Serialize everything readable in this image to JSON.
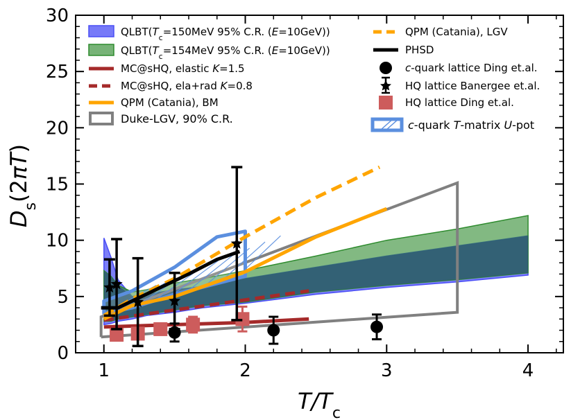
{
  "chart_data": {
    "type": "line",
    "xlabel": "T/T_c",
    "ylabel": "D_s(2πT)",
    "xlim": [
      0.8,
      4.25
    ],
    "ylim": [
      0,
      30
    ],
    "xticks": [
      1,
      2,
      3,
      4
    ],
    "yticks": [
      0,
      5,
      10,
      15,
      20,
      25,
      30
    ],
    "grid": false,
    "legend_left_texts": [
      "QLBT(T_c=150MeV 95% C.R. (E=10GeV))",
      "QLBT(T_c=154MeV 95% C.R. (E=10GeV))",
      "MC@sHQ, elastic K=1.5",
      "MC@sHQ, ela+rad K=0.8",
      "QPM (Catania), BM",
      "Duke-LGV, 90% C.R."
    ],
    "legend_right_texts": [
      "QPM (Catania), LGV",
      "PHSD",
      "c-quark lattice Ding et.al.",
      "HQ lattice Banergee et.al.",
      "HQ lattice Ding et.al.",
      "c-quark T-matrix U-pot"
    ],
    "colors": {
      "qlbt150": "#4a4ef5",
      "qlbt154": "#2e8b2e",
      "overlap": "#2f5a73",
      "mcshq": "#a52a2a",
      "qpm": "#ffa500",
      "duke": "#808080",
      "phsd": "#000000",
      "tmatrix": "#5b8fdf",
      "ding_hq": "#cd5c5c"
    },
    "bands": [
      {
        "name": "QLBT(Tc=150MeV 95% C.R. (E=10GeV))",
        "x": [
          1.0,
          1.05,
          1.1,
          1.2,
          1.3,
          1.5,
          1.7,
          2.0,
          2.5,
          3.0,
          3.5,
          4.0
        ],
        "lower": [
          2.5,
          2.6,
          2.8,
          3.0,
          3.3,
          3.6,
          4.0,
          4.4,
          5.2,
          5.8,
          6.3,
          6.9
        ],
        "upper": [
          10.2,
          8.5,
          6.5,
          5.0,
          5.2,
          5.6,
          5.9,
          6.6,
          7.6,
          8.6,
          9.5,
          10.4
        ]
      },
      {
        "name": "QLBT(Tc=154MeV 95% C.R. (E=10GeV))",
        "x": [
          1.0,
          1.05,
          1.1,
          1.2,
          1.3,
          1.5,
          1.7,
          2.0,
          2.5,
          3.0,
          3.5,
          4.0
        ],
        "lower": [
          2.8,
          2.8,
          3.0,
          3.2,
          3.4,
          3.8,
          4.2,
          4.5,
          5.4,
          6.0,
          6.5,
          7.1
        ],
        "upper": [
          7.3,
          6.8,
          6.0,
          5.4,
          5.6,
          6.2,
          6.6,
          7.3,
          8.6,
          10.0,
          11.0,
          12.2
        ]
      }
    ],
    "series": [
      {
        "name": "MC@sHQ, elastic K=1.5",
        "x": [
          1.0,
          1.5,
          2.0,
          2.45
        ],
        "y": [
          2.3,
          2.5,
          2.7,
          3.0
        ]
      },
      {
        "name": "MC@sHQ, ela+rad K=0.8",
        "x": [
          1.0,
          1.5,
          2.0,
          2.45
        ],
        "y": [
          2.9,
          3.8,
          4.7,
          5.5
        ]
      },
      {
        "name": "QPM (Catania), BM",
        "x": [
          1.0,
          1.2,
          1.5,
          2.0,
          2.5,
          3.0
        ],
        "y": [
          3.0,
          4.2,
          5.0,
          7.2,
          10.3,
          12.8
        ]
      },
      {
        "name": "QPM (Catania), LGV",
        "x": [
          1.0,
          1.2,
          1.5,
          2.0,
          2.5,
          2.95
        ],
        "y": [
          3.3,
          4.8,
          6.6,
          10.3,
          13.8,
          16.5
        ]
      },
      {
        "name": "PHSD",
        "x": [
          0.98,
          1.1,
          1.2,
          1.4,
          1.6,
          1.8,
          1.96
        ],
        "y": [
          4.0,
          4.0,
          4.6,
          5.8,
          7.0,
          8.3,
          9.0
        ]
      }
    ],
    "duke_lgv_region": {
      "name": "Duke-LGV, 90% C.R.",
      "x": [
        0.98,
        0.98,
        3.5,
        3.5,
        0.98
      ],
      "y": [
        1.4,
        3.2,
        15.1,
        3.6,
        1.4
      ]
    },
    "tmatrix_region": {
      "name": "c-quark T-matrix U-pot",
      "x_lower": [
        1.0,
        1.2,
        1.5,
        2.0
      ],
      "lower": [
        3.5,
        4.0,
        5.2,
        6.8
      ],
      "x_upper": [
        1.0,
        1.2,
        1.5,
        1.8,
        2.0
      ],
      "upper": [
        4.6,
        5.5,
        7.6,
        10.3,
        10.8
      ]
    },
    "points_ding_cquark": {
      "name": "c-quark lattice Ding et.al.",
      "points": [
        {
          "x": 1.5,
          "y": 1.8,
          "err": 0.8
        },
        {
          "x": 2.2,
          "y": 2.0,
          "err": 1.2
        },
        {
          "x": 2.93,
          "y": 2.3,
          "err": 1.1
        }
      ]
    },
    "points_banerjee": {
      "name": "HQ lattice Banergee et.al.",
      "points": [
        {
          "x": 1.04,
          "y": 5.8,
          "err": 2.5
        },
        {
          "x": 1.09,
          "y": 6.1,
          "err": 4.0
        },
        {
          "x": 1.24,
          "y": 4.5,
          "err": 3.9
        },
        {
          "x": 1.5,
          "y": 4.6,
          "err": 2.5
        },
        {
          "x": 1.94,
          "y": 9.7,
          "err": 6.8
        }
      ]
    },
    "points_ding_hq": {
      "name": "HQ lattice Ding et.al.",
      "points": [
        {
          "x": 1.09,
          "y": 1.6,
          "err": 0.3
        },
        {
          "x": 1.24,
          "y": 1.7,
          "err": 0.4
        },
        {
          "x": 1.4,
          "y": 2.1,
          "err": 0.5
        },
        {
          "x": 1.63,
          "y": 2.5,
          "err": 0.7
        },
        {
          "x": 1.98,
          "y": 3.0,
          "err": 1.1
        }
      ]
    }
  }
}
